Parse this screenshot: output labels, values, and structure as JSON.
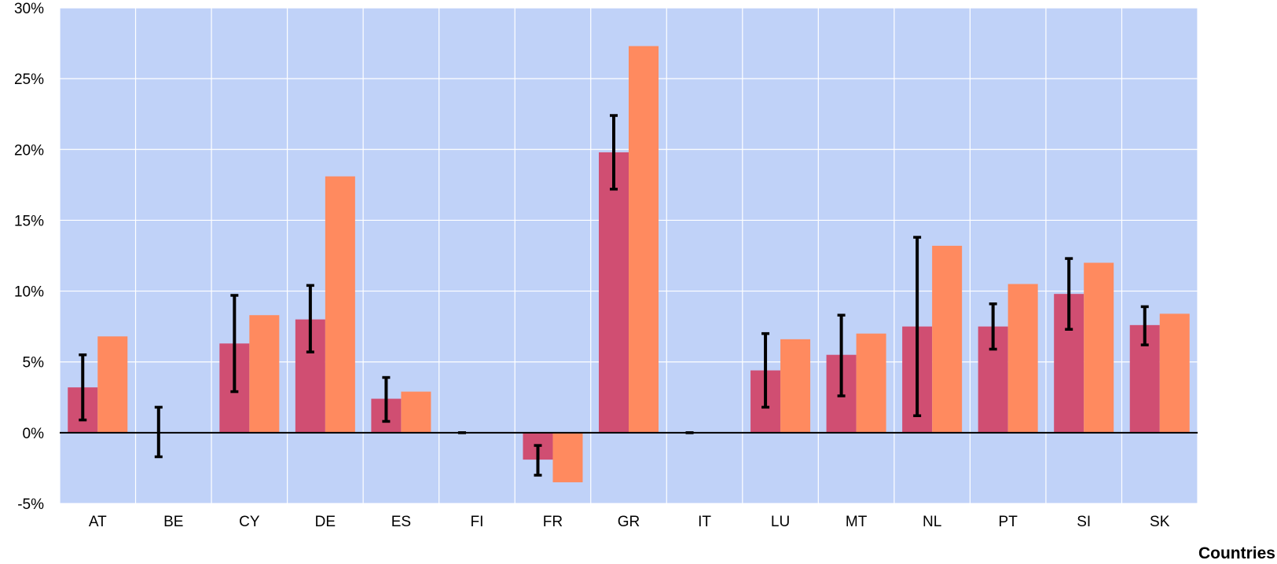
{
  "chart_data": {
    "type": "bar",
    "xlabel": "Countries",
    "ylabel": "",
    "ylim": [
      -5,
      30
    ],
    "yticks": [
      -5,
      0,
      5,
      10,
      15,
      20,
      25,
      30
    ],
    "ytick_labels": [
      "-5%",
      "0%",
      "5%",
      "10%",
      "15%",
      "20%",
      "25%",
      "30%"
    ],
    "grid": true,
    "categories": [
      "AT",
      "BE",
      "CY",
      "DE",
      "ES",
      "FI",
      "FR",
      "GR",
      "IT",
      "LU",
      "MT",
      "NL",
      "PT",
      "SI",
      "SK"
    ],
    "series": [
      {
        "color": "#d04e72",
        "values": [
          3.2,
          0,
          6.3,
          8.0,
          2.4,
          0,
          -1.9,
          19.8,
          0,
          4.4,
          5.5,
          7.5,
          7.5,
          9.8,
          7.6
        ],
        "error_low": [
          0.9,
          -1.7,
          2.9,
          5.7,
          0.8,
          0,
          -3.0,
          17.2,
          0,
          1.8,
          2.6,
          1.2,
          5.9,
          7.3,
          6.2
        ],
        "error_high": [
          5.5,
          1.8,
          9.7,
          10.4,
          3.9,
          0,
          -0.9,
          22.4,
          0,
          7.0,
          8.3,
          13.8,
          9.1,
          12.3,
          8.9
        ]
      },
      {
        "color": "#ff8a5f",
        "values": [
          6.8,
          0,
          8.3,
          18.1,
          2.9,
          0,
          -3.5,
          27.3,
          0,
          6.6,
          7.0,
          13.2,
          10.5,
          12.0,
          8.4
        ]
      }
    ],
    "colors": {
      "plot_background": "#c0d2f8",
      "gridline": "#ffffff",
      "error_bar": "#000000",
      "zero_line": "#000000"
    }
  }
}
